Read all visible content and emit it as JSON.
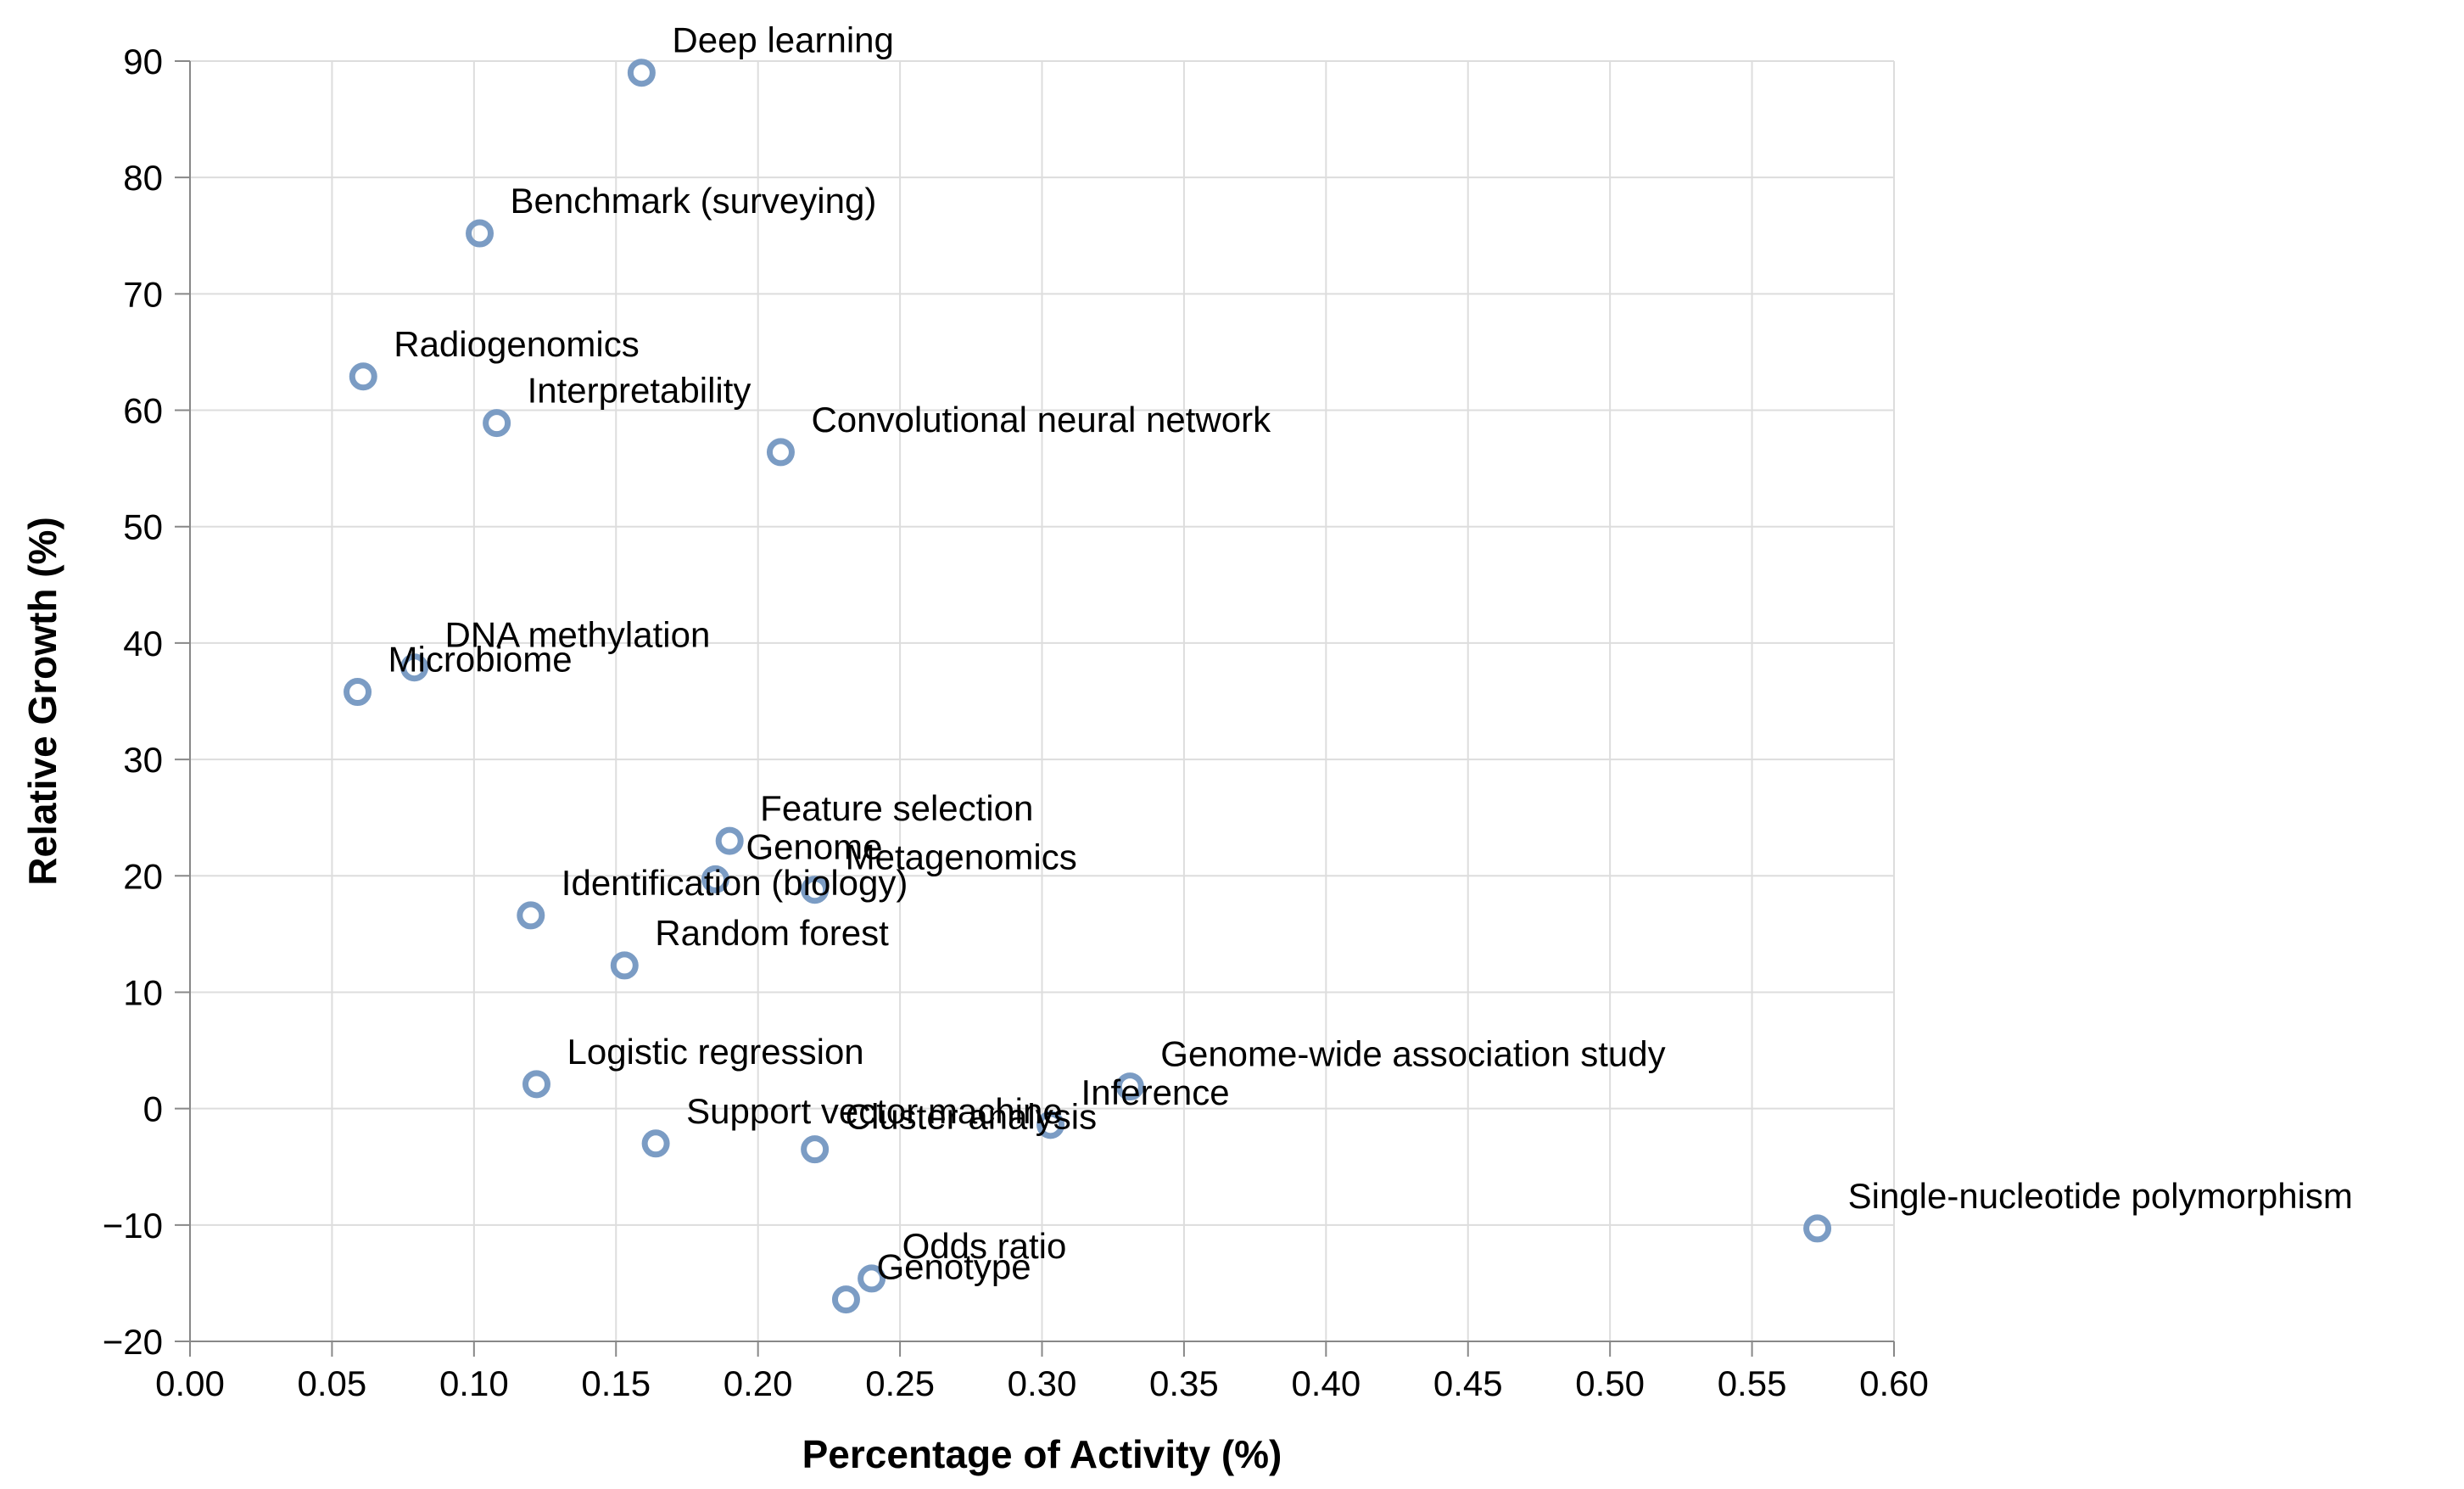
{
  "chart_data": {
    "type": "scatter",
    "title": "",
    "xlabel": "Percentage of Activity (%)",
    "ylabel": "Relative Growth (%)",
    "xlim": [
      0,
      0.6
    ],
    "ylim": [
      -20,
      90
    ],
    "xticks": [
      "0.00",
      "0.05",
      "0.10",
      "0.15",
      "0.20",
      "0.25",
      "0.30",
      "0.35",
      "0.40",
      "0.45",
      "0.50",
      "0.55",
      "0.60"
    ],
    "yticks": [
      "−20",
      "−10",
      "0",
      "10",
      "20",
      "30",
      "40",
      "50",
      "60",
      "70",
      "80",
      "90"
    ],
    "grid": true,
    "marker_color": "#7b9cc4",
    "points": [
      {
        "label": "Deep learning",
        "x": 0.159,
        "y": 89.0
      },
      {
        "label": "Benchmark (surveying)",
        "x": 0.102,
        "y": 75.2
      },
      {
        "label": "Radiogenomics",
        "x": 0.061,
        "y": 62.9
      },
      {
        "label": "Interpretability",
        "x": 0.108,
        "y": 58.9
      },
      {
        "label": "Convolutional neural network",
        "x": 0.208,
        "y": 56.4
      },
      {
        "label": "DNA methylation",
        "x": 0.079,
        "y": 37.9
      },
      {
        "label": "Microbiome",
        "x": 0.059,
        "y": 35.8
      },
      {
        "label": "Feature selection",
        "x": 0.19,
        "y": 23.0
      },
      {
        "label": "Genome",
        "x": 0.185,
        "y": 19.7
      },
      {
        "label": "Metagenomics",
        "x": 0.22,
        "y": 18.8
      },
      {
        "label": "Identification (biology)",
        "x": 0.12,
        "y": 16.6
      },
      {
        "label": "Random forest",
        "x": 0.153,
        "y": 12.3
      },
      {
        "label": "Logistic regression",
        "x": 0.122,
        "y": 2.1
      },
      {
        "label": "Genome-wide association study",
        "x": 0.331,
        "y": 1.9
      },
      {
        "label": "Inference",
        "x": 0.303,
        "y": -1.4
      },
      {
        "label": "Support vector machine",
        "x": 0.164,
        "y": -3.0
      },
      {
        "label": "Cluster analysis",
        "x": 0.22,
        "y": -3.5
      },
      {
        "label": "Single-nucleotide polymorphism",
        "x": 0.573,
        "y": -10.3
      },
      {
        "label": "Odds ratio",
        "x": 0.24,
        "y": -14.6
      },
      {
        "label": "Genotype",
        "x": 0.231,
        "y": -16.4
      }
    ]
  }
}
